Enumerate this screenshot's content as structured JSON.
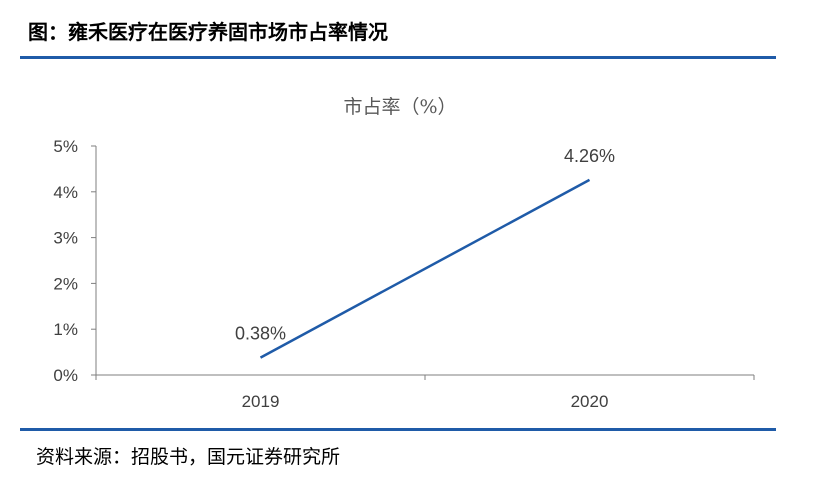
{
  "figure_title": "图：雍禾医疗在医疗养固市场市占率情况",
  "source_text": "资料来源：招股书，国元证券研究所",
  "colors": {
    "accent": "#1f5ba8",
    "series": "#1f5ba8"
  },
  "chart_data": {
    "type": "line",
    "title": "市占率（%）",
    "categories": [
      "2019",
      "2020"
    ],
    "series": [
      {
        "values": [
          0.38,
          4.26
        ]
      }
    ],
    "data_labels": [
      "0.38%",
      "4.26%"
    ],
    "y_ticks": [
      "0%",
      "1%",
      "2%",
      "3%",
      "4%",
      "5%"
    ],
    "ylim": [
      0,
      5
    ],
    "grid": false,
    "legend": "none"
  }
}
